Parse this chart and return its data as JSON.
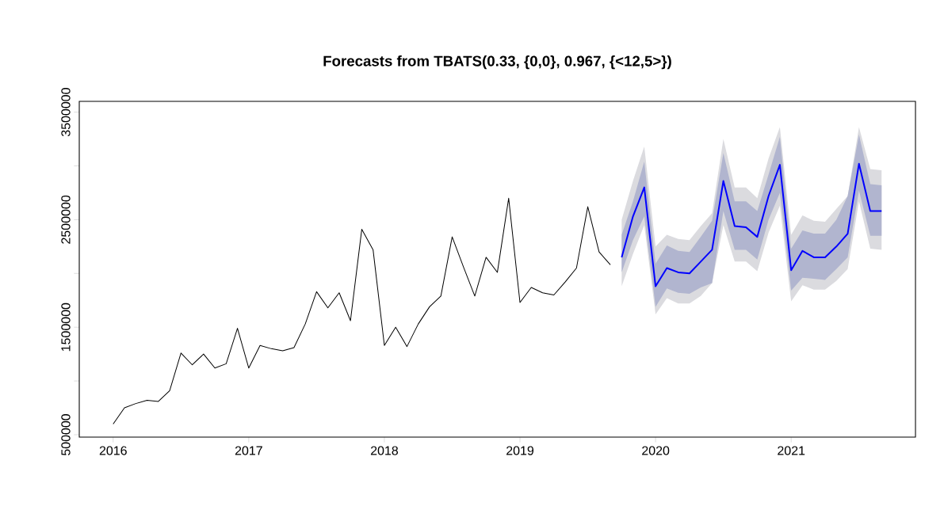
{
  "chart_data": {
    "type": "line",
    "title": "Forecasts from TBATS(0.33, {0,0}, 0.967, {<12,5>})",
    "xlim": [
      "2015-10",
      "2021-12"
    ],
    "xticks": [
      "2016",
      "2017",
      "2018",
      "2019",
      "2020",
      "2021"
    ],
    "ylim": [
      478000,
      3600000
    ],
    "yticks": [
      500000,
      {
        "value": 1000000,
        "label": null
      },
      1500000,
      {
        "value": 2000000,
        "label": null
      },
      2500000,
      {
        "value": 3000000,
        "label": null
      },
      3500000
    ],
    "series": [
      {
        "color": "#000000",
        "x": [
          "2016-01",
          "2016-02",
          "2016-03",
          "2016-04",
          "2016-05",
          "2016-06",
          "2016-07",
          "2016-08",
          "2016-09",
          "2016-10",
          "2016-11",
          "2016-12",
          "2017-01",
          "2017-02",
          "2017-03",
          "2017-04",
          "2017-05",
          "2017-06",
          "2017-07",
          "2017-08",
          "2017-09",
          "2017-10",
          "2017-11",
          "2017-12",
          "2018-01",
          "2018-02",
          "2018-03",
          "2018-04",
          "2018-05",
          "2018-06",
          "2018-07",
          "2018-08",
          "2018-09",
          "2018-10",
          "2018-11",
          "2018-12",
          "2019-01",
          "2019-02",
          "2019-03",
          "2019-04",
          "2019-05",
          "2019-06",
          "2019-07",
          "2019-08",
          "2019-09"
        ],
        "values": [
          600000,
          750000,
          790000,
          820000,
          810000,
          910000,
          1260000,
          1150000,
          1250000,
          1120000,
          1160000,
          1490000,
          1120000,
          1330000,
          1300000,
          1280000,
          1310000,
          1530000,
          1830000,
          1680000,
          1820000,
          1560000,
          2410000,
          2220000,
          1330000,
          1500000,
          1320000,
          1530000,
          1690000,
          1790000,
          2340000,
          2060000,
          1790000,
          2150000,
          2010000,
          2700000,
          1730000,
          1870000,
          1820000,
          1800000,
          1920000,
          2050000,
          2620000,
          2200000,
          2080000
        ]
      },
      {
        "color": "#dbdbdf",
        "x": [
          "2019-10",
          "2019-11",
          "2019-12",
          "2020-01",
          "2020-02",
          "2020-03",
          "2020-04",
          "2020-05",
          "2020-06",
          "2020-07",
          "2020-08",
          "2020-09",
          "2020-10",
          "2020-11",
          "2020-12",
          "2021-01",
          "2021-02",
          "2021-03",
          "2021-04",
          "2021-05",
          "2021-06",
          "2021-07",
          "2021-08",
          "2021-09"
        ],
        "values": [
          null,
          null,
          null,
          null,
          null,
          null,
          null,
          null,
          null,
          null,
          null,
          null,
          null,
          null,
          null,
          null,
          null,
          null,
          null,
          null,
          null,
          null,
          null,
          null
        ],
        "upper": [
          2500000,
          2860000,
          3180000,
          2250000,
          2360000,
          2320000,
          2310000,
          2440000,
          2560000,
          3250000,
          2800000,
          2800000,
          2700000,
          3070000,
          3360000,
          2360000,
          2540000,
          2490000,
          2480000,
          2600000,
          2720000,
          3360000,
          2970000,
          2960000
        ],
        "lower": [
          1880000,
          2180000,
          2450000,
          1620000,
          1770000,
          1720000,
          1720000,
          1790000,
          1910000,
          2450000,
          2110000,
          2110000,
          2020000,
          2380000,
          2630000,
          1740000,
          1890000,
          1850000,
          1850000,
          1930000,
          2040000,
          2670000,
          2230000,
          2220000
        ]
      },
      {
        "color": "#b1b5cf",
        "x": [
          "2019-10",
          "2019-11",
          "2019-12",
          "2020-01",
          "2020-02",
          "2020-03",
          "2020-04",
          "2020-05",
          "2020-06",
          "2020-07",
          "2020-08",
          "2020-09",
          "2020-10",
          "2020-11",
          "2020-12",
          "2021-01",
          "2021-02",
          "2021-03",
          "2021-04",
          "2021-05",
          "2021-06",
          "2021-07",
          "2021-08",
          "2021-09"
        ],
        "values": [
          null,
          null,
          null,
          null,
          null,
          null,
          null,
          null,
          null,
          null,
          null,
          null,
          null,
          null,
          null,
          null,
          null,
          null,
          null,
          null,
          null,
          null,
          null,
          null
        ],
        "upper": [
          2360000,
          2670000,
          3040000,
          2090000,
          2260000,
          2210000,
          2200000,
          2340000,
          2490000,
          3120000,
          2670000,
          2670000,
          2580000,
          2920000,
          3270000,
          2230000,
          2400000,
          2370000,
          2370000,
          2500000,
          2720000,
          3290000,
          2830000,
          2820000
        ],
        "lower": [
          2010000,
          2310000,
          2530000,
          1690000,
          1860000,
          1820000,
          1810000,
          1870000,
          1910000,
          2580000,
          2220000,
          2220000,
          2130000,
          2500000,
          2750000,
          1840000,
          1960000,
          1950000,
          1940000,
          2040000,
          2150000,
          2770000,
          2350000,
          2350000
        ]
      },
      {
        "color": "#0000ff",
        "x": [
          "2019-10",
          "2019-11",
          "2019-12",
          "2020-01",
          "2020-02",
          "2020-03",
          "2020-04",
          "2020-05",
          "2020-06",
          "2020-07",
          "2020-08",
          "2020-09",
          "2020-10",
          "2020-11",
          "2020-12",
          "2021-01",
          "2021-02",
          "2021-03",
          "2021-04",
          "2021-05",
          "2021-06",
          "2021-07",
          "2021-08",
          "2021-09"
        ],
        "values": [
          2150000,
          2530000,
          2800000,
          1880000,
          2050000,
          2010000,
          2000000,
          2110000,
          2220000,
          2860000,
          2440000,
          2430000,
          2340000,
          2720000,
          3010000,
          2030000,
          2210000,
          2150000,
          2150000,
          2250000,
          2370000,
          3020000,
          2580000,
          2580000
        ]
      }
    ]
  }
}
